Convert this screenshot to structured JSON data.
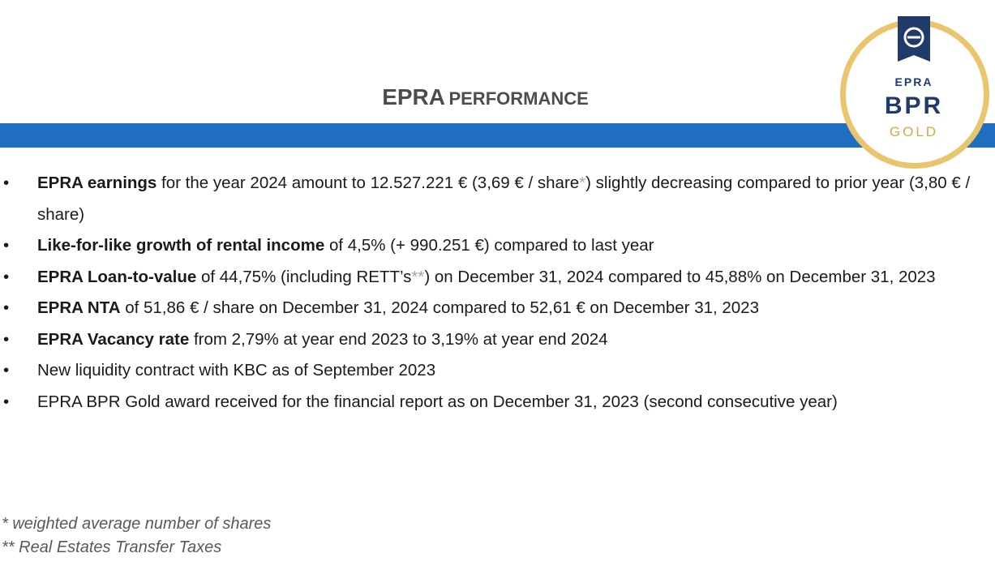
{
  "header": {
    "title_main": "EPRA",
    "title_rest": "PERFORMANCE"
  },
  "badge": {
    "top": "EPRA",
    "middle": "BPR",
    "bottom": "GOLD"
  },
  "bullets": [
    [
      {
        "text": "EPRA earnings",
        "style": "bold"
      },
      {
        "text": " for the year 2024 amount to 12.527.221 € (3,69 € / share",
        "style": "normal"
      },
      {
        "text": "*",
        "style": "note"
      },
      {
        "text": ") slightly decreasing compared to prior year (3,80 € / share)",
        "style": "normal"
      }
    ],
    [
      {
        "text": "Like-for-like growth of rental income",
        "style": "bold"
      },
      {
        "text": " of 4,5% (+ 990.251 €) compared to last year",
        "style": "normal"
      }
    ],
    [
      {
        "text": "EPRA Loan-to-value",
        "style": "bold"
      },
      {
        "text": " of 44,75% (including RETT’s",
        "style": "normal"
      },
      {
        "text": "**",
        "style": "note"
      },
      {
        "text": ") on December 31, 2024 compared to 45,88% on December 31, 2023",
        "style": "normal"
      }
    ],
    [
      {
        "text": "EPRA NTA",
        "style": "bold"
      },
      {
        "text": " of 51,86 € / share on December 31, 2024 compared to 52,61 € on December 31, 2023",
        "style": "normal"
      }
    ],
    [
      {
        "text": "EPRA Vacancy rate",
        "style": "bold"
      },
      {
        "text": " from 2,79% at year end 2023 to 3,19% at year end 2024",
        "style": "normal"
      }
    ],
    [
      {
        "text": "New liquidity contract with KBC as of September 2023",
        "style": "normal"
      }
    ],
    [
      {
        "text": "EPRA BPR Gold award received for the financial report as on December 31, 2023 (second consecutive year)",
        "style": "normal"
      }
    ]
  ],
  "footnotes": [
    "* weighted average number of shares",
    "** Real Estates Transfer Taxes"
  ]
}
